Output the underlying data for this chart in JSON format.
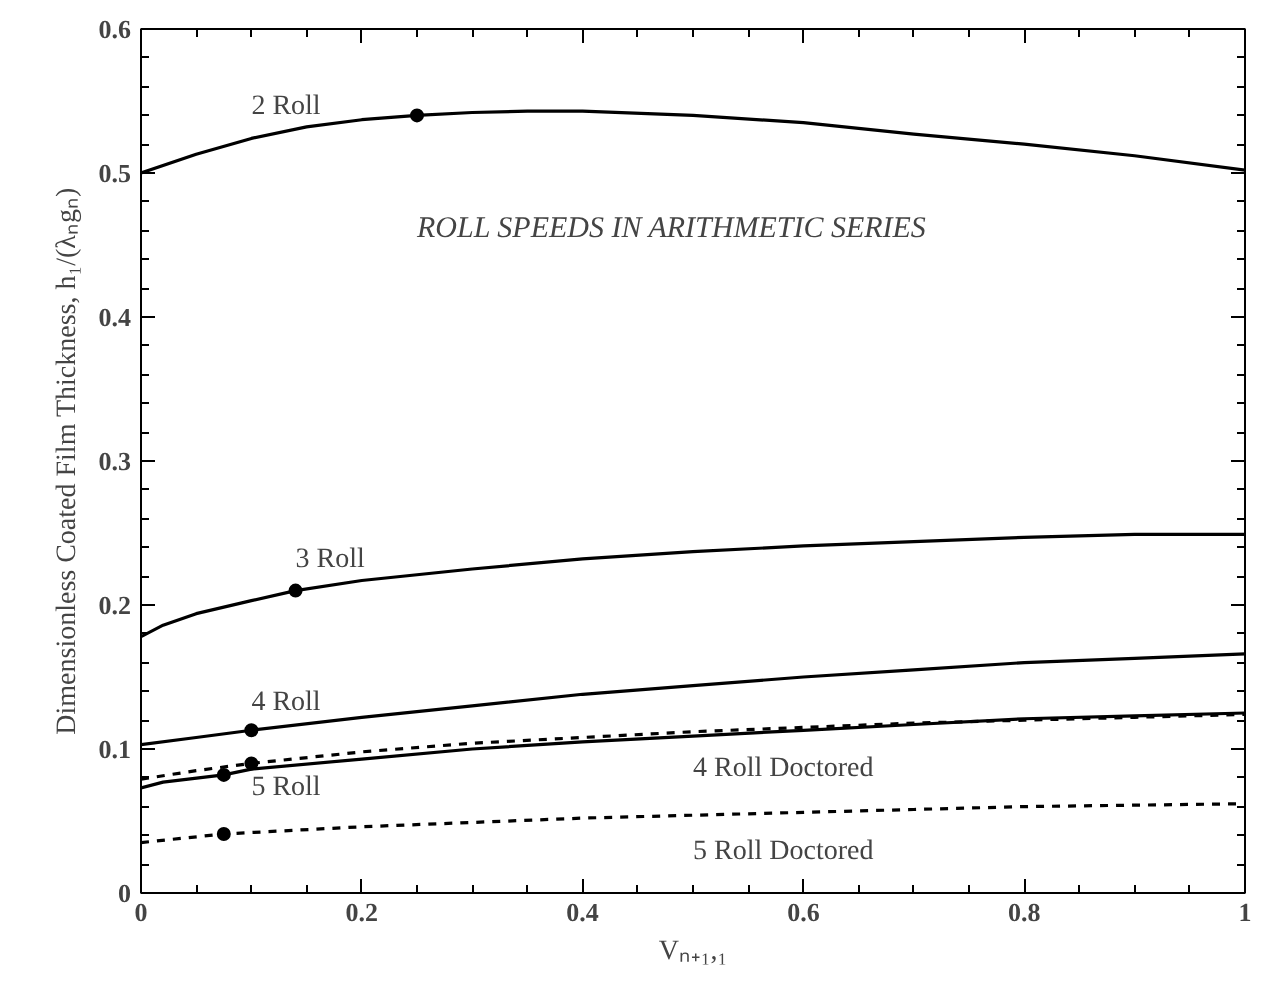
{
  "chart_data": {
    "type": "line",
    "xlabel": "Vₙ₊₁,₁",
    "ylabel": "Dimensionless Coated Film Thickness, h₁/(λₙgₙ)",
    "xlim": [
      0,
      1
    ],
    "ylim": [
      0,
      0.6
    ],
    "xticks": [
      0,
      0.2,
      0.4,
      0.6,
      0.8,
      1
    ],
    "yticks": [
      0,
      0.1,
      0.2,
      0.3,
      0.4,
      0.5,
      0.6
    ],
    "grid": false,
    "marker": "none",
    "annotations": [
      "ROLL SPEEDS IN ARITHMETIC SERIES"
    ],
    "series": [
      {
        "name": "2 Roll",
        "color": "#000000",
        "line_style": "solid",
        "x": [
          0,
          0.05,
          0.1,
          0.15,
          0.2,
          0.25,
          0.3,
          0.35,
          0.4,
          0.5,
          0.6,
          0.7,
          0.8,
          0.9,
          1
        ],
        "values": [
          0.5,
          0.513,
          0.524,
          0.532,
          0.537,
          0.54,
          0.542,
          0.543,
          0.543,
          0.54,
          0.535,
          0.527,
          0.52,
          0.512,
          0.502
        ]
      },
      {
        "name": "3 Roll",
        "color": "#000000",
        "line_style": "solid",
        "x": [
          0,
          0.02,
          0.05,
          0.1,
          0.14,
          0.2,
          0.3,
          0.4,
          0.5,
          0.6,
          0.7,
          0.8,
          0.9,
          1
        ],
        "values": [
          0.178,
          0.186,
          0.194,
          0.203,
          0.21,
          0.217,
          0.225,
          0.232,
          0.237,
          0.241,
          0.244,
          0.247,
          0.249,
          0.249
        ]
      },
      {
        "name": "4 Roll",
        "color": "#000000",
        "line_style": "solid",
        "x": [
          0,
          0.05,
          0.1,
          0.2,
          0.3,
          0.4,
          0.5,
          0.6,
          0.7,
          0.8,
          0.9,
          1
        ],
        "values": [
          0.103,
          0.108,
          0.113,
          0.122,
          0.13,
          0.138,
          0.144,
          0.15,
          0.155,
          0.16,
          0.163,
          0.166
        ]
      },
      {
        "name": "5 Roll",
        "color": "#000000",
        "line_style": "solid",
        "x": [
          0,
          0.02,
          0.075,
          0.1,
          0.2,
          0.3,
          0.4,
          0.5,
          0.6,
          0.7,
          0.8,
          0.9,
          1
        ],
        "values": [
          0.073,
          0.077,
          0.082,
          0.086,
          0.093,
          0.1,
          0.105,
          0.109,
          0.113,
          0.117,
          0.121,
          0.123,
          0.125
        ]
      },
      {
        "name": "4 Roll Doctored",
        "color": "#000000",
        "line_style": "dashed",
        "x": [
          0,
          0.05,
          0.1,
          0.2,
          0.3,
          0.4,
          0.5,
          0.6,
          0.7,
          0.8,
          0.9,
          1
        ],
        "values": [
          0.079,
          0.085,
          0.09,
          0.098,
          0.104,
          0.108,
          0.112,
          0.115,
          0.118,
          0.12,
          0.122,
          0.124
        ]
      },
      {
        "name": "5 Roll Doctored",
        "color": "#000000",
        "line_style": "dashed",
        "x": [
          0,
          0.075,
          0.2,
          0.3,
          0.4,
          0.5,
          0.6,
          0.7,
          0.8,
          0.9,
          1
        ],
        "values": [
          0.035,
          0.041,
          0.046,
          0.049,
          0.052,
          0.054,
          0.056,
          0.058,
          0.06,
          0.061,
          0.062
        ]
      },
      {
        "type": "scatter",
        "marker": "circle",
        "color": "#000000",
        "x": [
          0.25,
          0.14,
          0.1,
          0.075,
          0.1,
          0.075
        ],
        "values": [
          0.54,
          0.21,
          0.113,
          0.082,
          0.09,
          0.041
        ]
      }
    ]
  }
}
